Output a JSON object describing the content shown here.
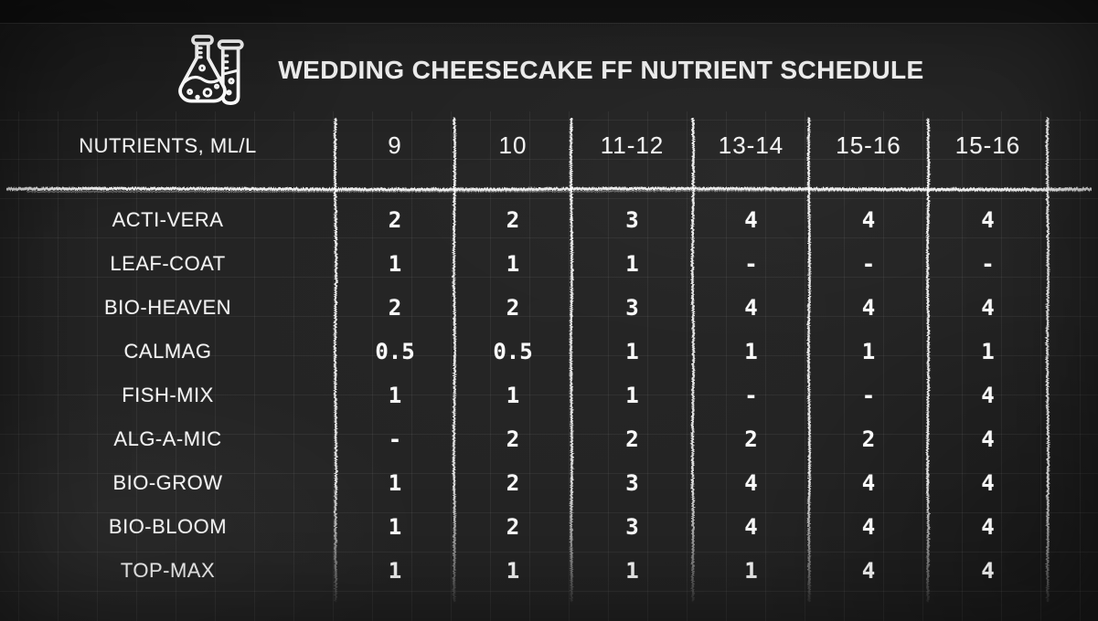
{
  "header": {
    "title": "WEDDING CHEESECAKE FF NUTRIENT SCHEDULE",
    "icon": "flask-and-test-tube-icon"
  },
  "chart_data": {
    "type": "table",
    "title": "WEDDING CHEESECAKE FF NUTRIENT SCHEDULE",
    "unit_label": "NUTRIENTS, ML/L",
    "columns": [
      "NUTRIENTS, ML/L",
      "9",
      "10",
      "11-12",
      "13-14",
      "15-16",
      "15-16"
    ],
    "rows": [
      {
        "name": "ACTI-VERA",
        "values": [
          "2",
          "2",
          "3",
          "4",
          "4",
          "4"
        ]
      },
      {
        "name": "LEAF-COAT",
        "values": [
          "1",
          "1",
          "1",
          "-",
          "-",
          "-"
        ]
      },
      {
        "name": "BIO-HEAVEN",
        "values": [
          "2",
          "2",
          "3",
          "4",
          "4",
          "4"
        ]
      },
      {
        "name": "CALMAG",
        "values": [
          "0.5",
          "0.5",
          "1",
          "1",
          "1",
          "1"
        ]
      },
      {
        "name": "FISH-MIX",
        "values": [
          "1",
          "1",
          "1",
          "-",
          "-",
          "4"
        ]
      },
      {
        "name": "ALG-A-MIC",
        "values": [
          "-",
          "2",
          "2",
          "2",
          "2",
          "4"
        ]
      },
      {
        "name": "BIO-GROW",
        "values": [
          "1",
          "2",
          "3",
          "4",
          "4",
          "4"
        ]
      },
      {
        "name": "BIO-BLOOM",
        "values": [
          "1",
          "2",
          "3",
          "4",
          "4",
          "4"
        ]
      },
      {
        "name": "TOP-MAX",
        "values": [
          "1",
          "1",
          "1",
          "1",
          "4",
          "4"
        ]
      }
    ],
    "layout": {
      "legend": "none",
      "grid": "on",
      "style": "chalkboard"
    },
    "colors": {
      "background": "#232323",
      "text": "#f3f3f3",
      "chalk": "#ffffff",
      "grid_line": "rgba(255,255,255,0.055)"
    }
  }
}
